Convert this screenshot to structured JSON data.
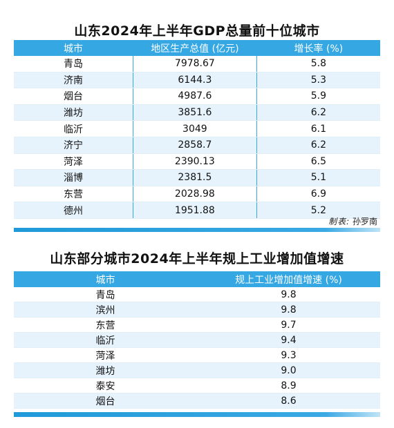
{
  "table1": {
    "title": "山东2024年上半年GDP总量前十位城市",
    "headers": [
      "城市",
      "地区生产总值 (亿元)",
      "增长率 (%)"
    ],
    "rows": [
      [
        "青岛",
        "7978.67",
        "5.8"
      ],
      [
        "济南",
        "6144.3",
        "5.3"
      ],
      [
        "烟台",
        "4987.6",
        "5.9"
      ],
      [
        "潍坊",
        "3851.6",
        "6.2"
      ],
      [
        "临沂",
        "3049",
        "6.1"
      ],
      [
        "济宁",
        "2858.7",
        "6.2"
      ],
      [
        "菏泽",
        "2390.13",
        "6.5"
      ],
      [
        "淄博",
        "2381.5",
        "5.1"
      ],
      [
        "东营",
        "2028.98",
        "6.9"
      ],
      [
        "德州",
        "1951.88",
        "5.2"
      ]
    ],
    "credit_label": "制表:",
    "credit_name": "孙罗南"
  },
  "table2": {
    "title": "山东部分城市2024年上半年规上工业增加值增速",
    "headers": [
      "城市",
      "规上工业增加值增速 (%)"
    ],
    "rows": [
      [
        "青岛",
        "9.8"
      ],
      [
        "滨州",
        "9.8"
      ],
      [
        "东营",
        "9.7"
      ],
      [
        "临沂",
        "9.4"
      ],
      [
        "菏泽",
        "9.3"
      ],
      [
        "潍坊",
        "9.0"
      ],
      [
        "泰安",
        "8.9"
      ],
      [
        "烟台",
        "8.6"
      ]
    ]
  },
  "colors": {
    "header": "#35a7e3",
    "stripe": "#e6f3fc"
  }
}
